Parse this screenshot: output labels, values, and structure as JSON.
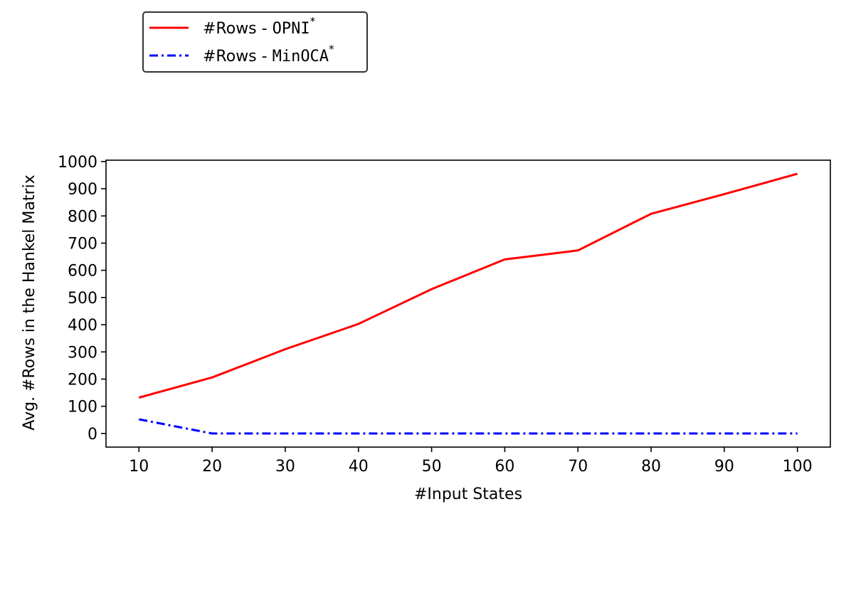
{
  "chart_data": {
    "type": "line",
    "title": "",
    "xlabel": "#Input States",
    "ylabel": "Avg. #Rows in the Hankel Matrix",
    "x": [
      10,
      20,
      30,
      40,
      50,
      60,
      70,
      80,
      90,
      100
    ],
    "xticks": [
      10,
      20,
      30,
      40,
      50,
      60,
      70,
      80,
      90,
      100
    ],
    "yticks": [
      0,
      100,
      200,
      300,
      400,
      500,
      600,
      700,
      800,
      900,
      1000
    ],
    "xlim": [
      5.5,
      104.5
    ],
    "ylim": [
      -50,
      1005
    ],
    "grid": false,
    "legend_position": "above plot, left",
    "series": [
      {
        "name_prefix": "#Rows - ",
        "name_code": "OPNI",
        "name_sup": "*",
        "color": "#ff0000",
        "style": "solid",
        "values": [
          132,
          206,
          310,
          403,
          531,
          640,
          673,
          808,
          880,
          955
        ]
      },
      {
        "name_prefix": "#Rows - ",
        "name_code": "MinOCA",
        "name_sup": "*",
        "color": "#0000ff",
        "style": "dashdot",
        "values": [
          52,
          0,
          0,
          0,
          0,
          0,
          0,
          0,
          0,
          0
        ]
      }
    ]
  }
}
